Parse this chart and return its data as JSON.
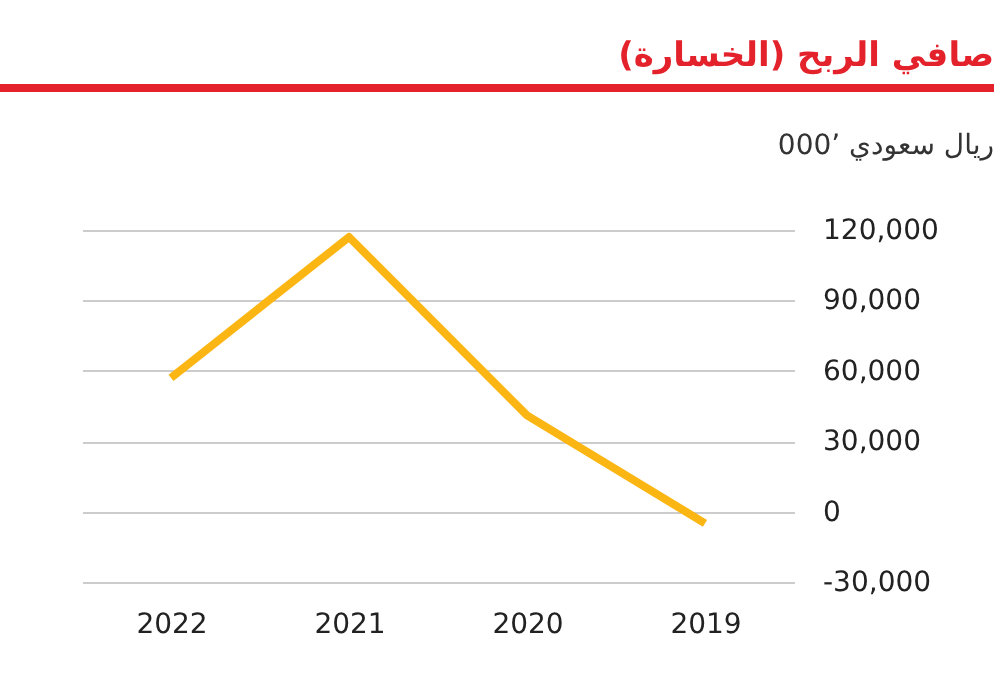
{
  "chart_data": {
    "type": "line",
    "title": "صافي الربح (الخسارة)",
    "ylabel": "ريال سعودي ’000",
    "categories": [
      "2022",
      "2021",
      "2020",
      "2019"
    ],
    "series": [
      {
        "color": "#fbb614",
        "values": [
          57000,
          117000,
          41000,
          -5000
        ]
      }
    ],
    "ylim": [
      -30000,
      120000
    ],
    "yticks": [
      {
        "value": -30000,
        "label": "-30,000"
      },
      {
        "value": 0,
        "label": "0"
      },
      {
        "value": 30000,
        "label": "30,000"
      },
      {
        "value": 60000,
        "label": "60,000"
      },
      {
        "value": 90000,
        "label": "90,000"
      },
      {
        "value": 120000,
        "label": "120,000"
      }
    ],
    "grid": "y",
    "marker": "none",
    "line_style": "solid"
  }
}
